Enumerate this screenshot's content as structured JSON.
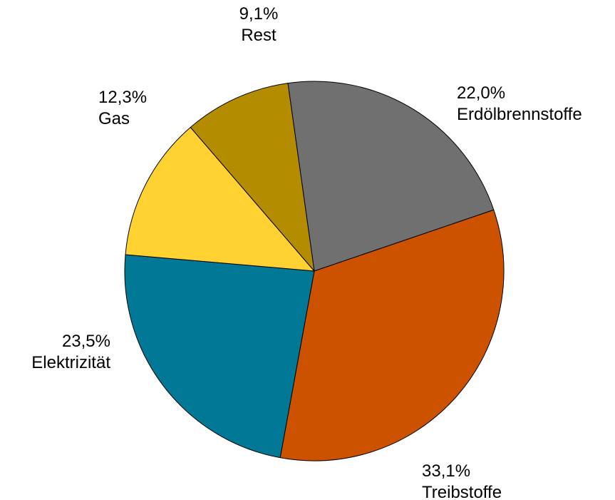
{
  "chart_data": {
    "type": "pie",
    "start_angle_deg": -8,
    "direction": "clockwise",
    "slices": [
      {
        "name": "Erdölbrennstoffe",
        "percent_label": "22,0%",
        "value": 22.0,
        "color": "#707070"
      },
      {
        "name": "Treibstoffe",
        "percent_label": "33,1%",
        "value": 33.1,
        "color": "#cc5200"
      },
      {
        "name": "Elektrizität",
        "percent_label": "23,5%",
        "value": 23.5,
        "color": "#007896"
      },
      {
        "name": "Gas",
        "percent_label": "12,3%",
        "value": 12.3,
        "color": "#ffd232"
      },
      {
        "name": "Rest",
        "percent_label": "9,1%",
        "value": 9.1,
        "color": "#b48c00"
      }
    ]
  }
}
